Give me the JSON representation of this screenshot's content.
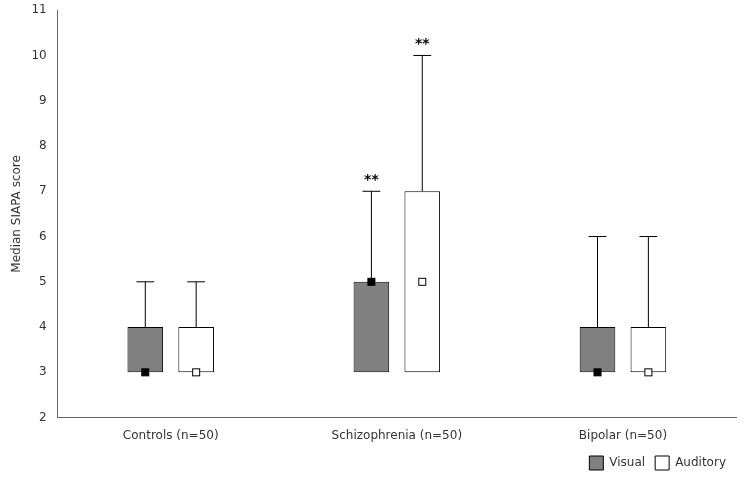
{
  "chart_data": {
    "type": "box",
    "y_label": "Median SIAPA score",
    "categories": [
      "Controls (n=50)",
      "Schizophrenia (n=50)",
      "Bipolar (n=50)"
    ],
    "series": [
      {
        "name": "Visual",
        "color": "#808080",
        "q1": [
          3,
          3,
          3
        ],
        "median": [
          3,
          5,
          3
        ],
        "q3": [
          4,
          5,
          4
        ],
        "whisker_low": [
          3,
          3,
          3
        ],
        "whisker_high": [
          5,
          7,
          6
        ],
        "significance": [
          null,
          "**",
          null
        ]
      },
      {
        "name": "Auditory",
        "color": "#ffffff",
        "q1": [
          3,
          3,
          3
        ],
        "median": [
          3,
          5,
          3
        ],
        "q3": [
          4,
          7,
          4
        ],
        "whisker_low": [
          3,
          3,
          3
        ],
        "whisker_high": [
          5,
          10,
          6
        ],
        "significance": [
          null,
          "**",
          null
        ]
      }
    ],
    "ylim": [
      2,
      11
    ],
    "yticks": [
      2,
      3,
      4,
      5,
      6,
      7,
      8,
      9,
      10,
      11
    ],
    "grid": false,
    "legend": "lower right"
  }
}
